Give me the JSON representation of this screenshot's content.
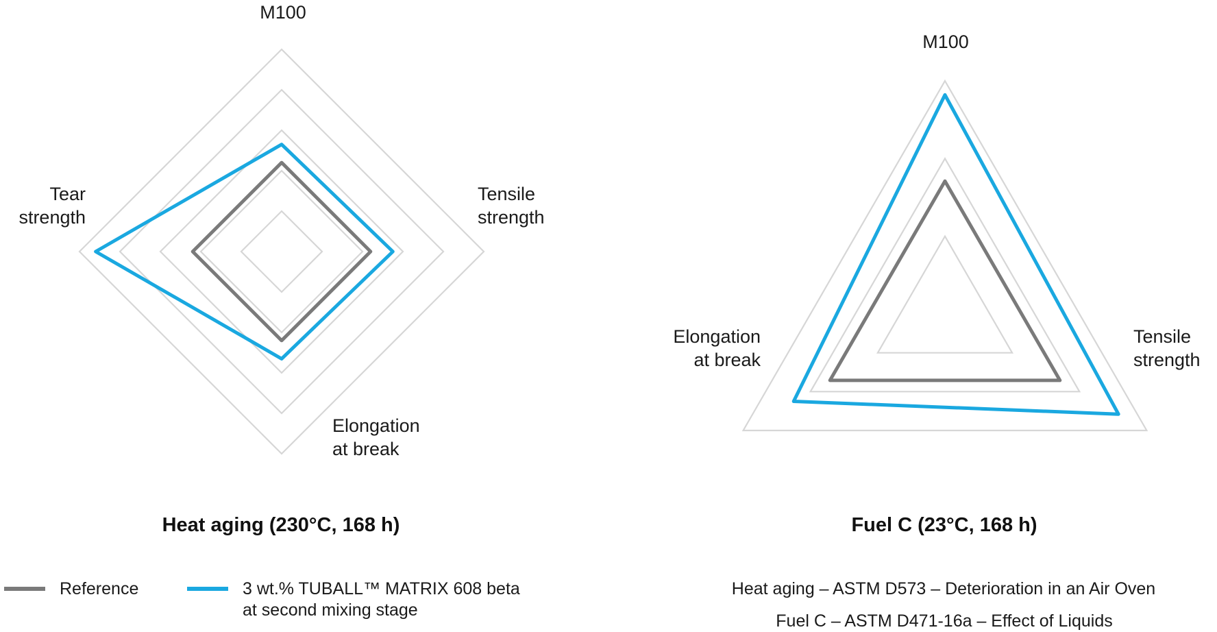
{
  "colors": {
    "grid": "#d6d6d6",
    "reference": "#7a7a7a",
    "tuball": "#1aa8e0"
  },
  "chart_data": [
    {
      "type": "radar",
      "title": "Heat aging (230°C, 168 h)",
      "axes": [
        "M100",
        "Tensile strength",
        "Elongation at break",
        "Tear strength"
      ],
      "axis_label_lines": [
        [
          "M100"
        ],
        [
          "Tensile",
          "strength"
        ],
        [
          "Elongation",
          "at break"
        ],
        [
          "Tear",
          "strength"
        ]
      ],
      "rings": 5,
      "grid": true,
      "series": [
        {
          "name": "Reference",
          "values": [
            0.44,
            0.44,
            0.44,
            0.44
          ]
        },
        {
          "name": "3 wt.% TUBALL™ MATRIX 608 beta at second mixing stage",
          "values": [
            0.53,
            0.55,
            0.53,
            0.92
          ]
        }
      ]
    },
    {
      "type": "radar",
      "title": "Fuel C (23°C, 168 h)",
      "axes": [
        "M100",
        "Tensile strength",
        "Elongation at break"
      ],
      "axis_label_lines": [
        [
          "M100"
        ],
        [
          "Tensile",
          "strength"
        ],
        [
          "Elongation",
          "at break"
        ]
      ],
      "rings": 3,
      "grid": true,
      "series": [
        {
          "name": "Reference",
          "values": [
            0.57,
            0.57,
            0.57
          ]
        },
        {
          "name": "3 wt.% TUBALL™ MATRIX 608 beta at second mixing stage",
          "values": [
            0.94,
            0.86,
            0.75
          ]
        }
      ]
    }
  ],
  "legend": {
    "items": [
      {
        "label_lines": [
          "Reference"
        ],
        "color_key": "reference"
      },
      {
        "label_lines": [
          "3 wt.% TUBALL™ MATRIX 608 beta",
          "at second mixing stage"
        ],
        "color_key": "tuball"
      }
    ]
  },
  "notes": [
    "Heat aging – ASTM D573 – Deterioration in an Air Oven",
    "Fuel C – ASTM D471-16a – Effect of Liquids"
  ]
}
